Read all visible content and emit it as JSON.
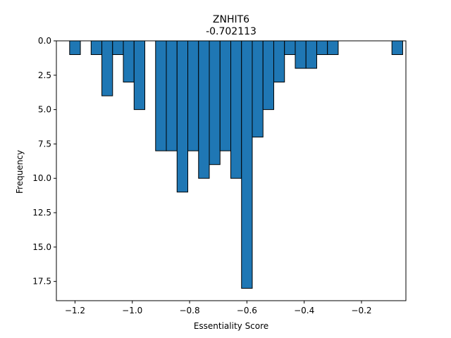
{
  "chart_data": {
    "type": "bar",
    "title": "ZNHIT6",
    "subtitle": "-0.702113",
    "xlabel": "Essentiality Score",
    "ylabel": "Frequency",
    "bar_color": "#1f77b4",
    "edge_color": "#000000",
    "y_axis_inverted": true,
    "grid": false,
    "xlim": [
      -1.265,
      -0.045
    ],
    "ylim": [
      0,
      18.9
    ],
    "bin_width": 0.0375,
    "bins": [
      {
        "x": -1.2,
        "count": 1
      },
      {
        "x": -1.1625,
        "count": 0
      },
      {
        "x": -1.125,
        "count": 1
      },
      {
        "x": -1.0875,
        "count": 4
      },
      {
        "x": -1.05,
        "count": 1
      },
      {
        "x": -1.0125,
        "count": 3
      },
      {
        "x": -0.975,
        "count": 5
      },
      {
        "x": -0.9375,
        "count": 0
      },
      {
        "x": -0.9,
        "count": 8
      },
      {
        "x": -0.8625,
        "count": 8
      },
      {
        "x": -0.825,
        "count": 11
      },
      {
        "x": -0.7875,
        "count": 8
      },
      {
        "x": -0.75,
        "count": 10
      },
      {
        "x": -0.7125,
        "count": 9
      },
      {
        "x": -0.675,
        "count": 8
      },
      {
        "x": -0.6375,
        "count": 10
      },
      {
        "x": -0.6,
        "count": 18
      },
      {
        "x": -0.5625,
        "count": 7
      },
      {
        "x": -0.525,
        "count": 5
      },
      {
        "x": -0.4875,
        "count": 3
      },
      {
        "x": -0.45,
        "count": 1
      },
      {
        "x": -0.4125,
        "count": 2
      },
      {
        "x": -0.375,
        "count": 2
      },
      {
        "x": -0.3375,
        "count": 1
      },
      {
        "x": -0.3,
        "count": 1
      },
      {
        "x": -0.2625,
        "count": 0
      },
      {
        "x": -0.225,
        "count": 0
      },
      {
        "x": -0.1875,
        "count": 0
      },
      {
        "x": -0.15,
        "count": 0
      },
      {
        "x": -0.1125,
        "count": 0
      },
      {
        "x": -0.075,
        "count": 1
      }
    ],
    "x_ticks": [
      {
        "value": -1.2,
        "label": "−1.2"
      },
      {
        "value": -1.0,
        "label": "−1.0"
      },
      {
        "value": -0.8,
        "label": "−0.8"
      },
      {
        "value": -0.6,
        "label": "−0.6"
      },
      {
        "value": -0.4,
        "label": "−0.4"
      },
      {
        "value": -0.2,
        "label": "−0.2"
      }
    ],
    "y_ticks": [
      {
        "value": 0,
        "label": "0.0"
      },
      {
        "value": 2.5,
        "label": "2.5"
      },
      {
        "value": 5,
        "label": "5.0"
      },
      {
        "value": 7.5,
        "label": "7.5"
      },
      {
        "value": 10,
        "label": "10.0"
      },
      {
        "value": 12.5,
        "label": "12.5"
      },
      {
        "value": 15,
        "label": "15.0"
      },
      {
        "value": 17.5,
        "label": "17.5"
      }
    ]
  }
}
